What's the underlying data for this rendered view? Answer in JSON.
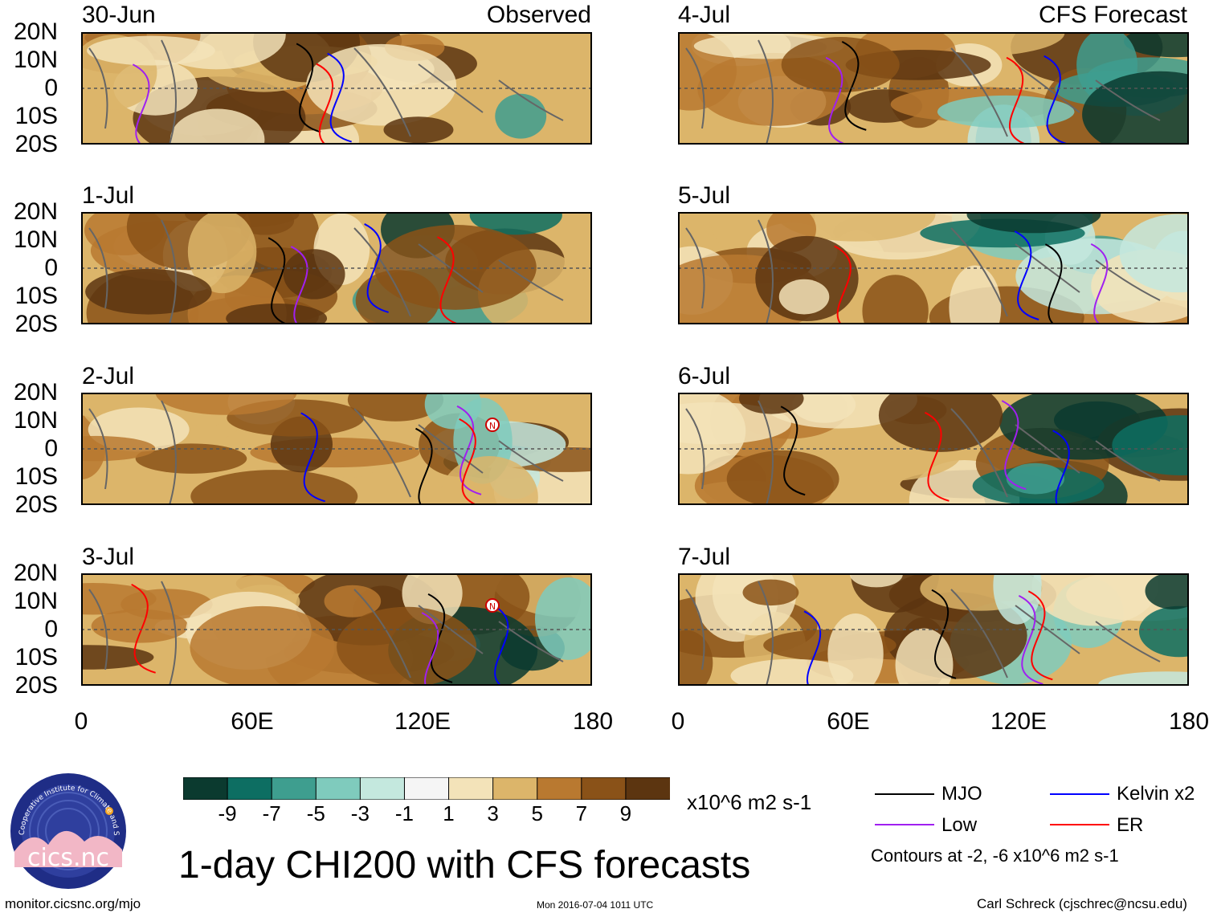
{
  "logo": {
    "name": "cics.nc",
    "ring_text": "Cooperative Institute for Climate and Satellites"
  },
  "title": "1-day CHI200 with CFS forecasts",
  "footer": {
    "left": "monitor.cicsnc.org/mjo",
    "center": "Mon 2016-07-04 1011 UTC",
    "right": "Carl Schreck (cjschrec@ncsu.edu)"
  },
  "units": "x10^6 m2 s-1",
  "colorbar": {
    "labels": [
      "-9",
      "-7",
      "-5",
      "-3",
      "-1",
      "1",
      "3",
      "5",
      "7",
      "9"
    ],
    "colors": [
      "#0b3a2f",
      "#0d6e62",
      "#3e9e8f",
      "#7fcbbd",
      "#c4e8de",
      "#f5f5f5",
      "#f3e3b9",
      "#dcb56a",
      "#b97930",
      "#8a5218",
      "#5c3510"
    ]
  },
  "legend": {
    "items": [
      {
        "label": "MJO",
        "color": "#000000"
      },
      {
        "label": "Kelvin x2",
        "color": "#0000ff"
      },
      {
        "label": "Low",
        "color": "#a020f0"
      },
      {
        "label": "ER",
        "color": "#ff0000"
      }
    ],
    "note": "Contours at -2, -6 x10^6 m2 s-1"
  },
  "axes": {
    "y_labels": [
      "20N",
      "10N",
      "0",
      "10S",
      "20S"
    ],
    "x_labels": [
      "0",
      "60E",
      "120E",
      "180"
    ]
  },
  "columns": {
    "left_mode": "Observed",
    "right_mode": "CFS Forecast"
  },
  "panels": [
    {
      "date": "30-Jun",
      "column": "left"
    },
    {
      "date": "1-Jul",
      "column": "left"
    },
    {
      "date": "2-Jul",
      "column": "left"
    },
    {
      "date": "3-Jul",
      "column": "left"
    },
    {
      "date": "4-Jul",
      "column": "right"
    },
    {
      "date": "5-Jul",
      "column": "right"
    },
    {
      "date": "6-Jul",
      "column": "right"
    },
    {
      "date": "7-Jul",
      "column": "right"
    }
  ],
  "storm_marker": "N"
}
